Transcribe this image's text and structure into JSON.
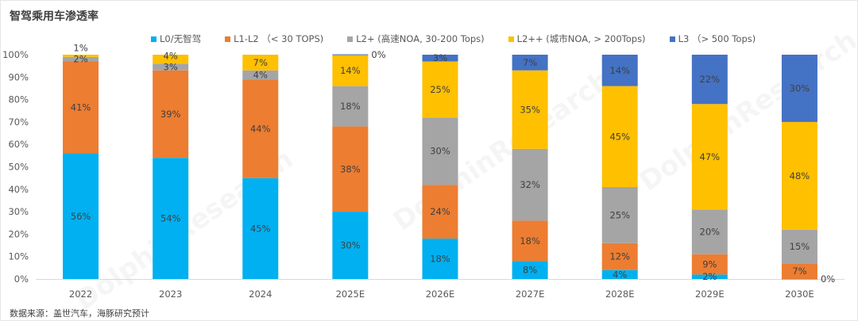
{
  "watermark": "DolphinResearch",
  "chart_data": {
    "type": "bar",
    "stacked": true,
    "title": "智驾乘用车渗透率",
    "source": "数据来源：盖世汽车，海豚研究预计",
    "categories": [
      "2022",
      "2023",
      "2024",
      "2025E",
      "2026E",
      "2027E",
      "2028E",
      "2029E",
      "2030E"
    ],
    "yticks": [
      "0%",
      "10%",
      "20%",
      "30%",
      "40%",
      "50%",
      "60%",
      "70%",
      "80%",
      "90%",
      "100%"
    ],
    "ylim": [
      0,
      100
    ],
    "grid": false,
    "legend": "top",
    "series": [
      {
        "name": "L0/无智驾",
        "color": "#00B0F0",
        "values": [
          56,
          54,
          45,
          30,
          18,
          8,
          4,
          2,
          0
        ]
      },
      {
        "name": "L1-L2 （< 30 TOPS)",
        "color": "#ED7D31",
        "values": [
          41,
          39,
          44,
          38,
          24,
          18,
          12,
          9,
          7
        ]
      },
      {
        "name": "L2+ (高速NOA, 30-200 Tops)",
        "color": "#A5A5A5",
        "values": [
          2,
          3,
          4,
          18,
          30,
          32,
          25,
          20,
          15
        ]
      },
      {
        "name": "L2++ (城市NOA, > 200Tops)",
        "color": "#FFC000",
        "values": [
          1,
          4,
          7,
          14,
          25,
          35,
          45,
          47,
          48
        ]
      },
      {
        "name": "L3 （> 500 Tops)",
        "color": "#4472C4",
        "values": [
          null,
          null,
          null,
          0,
          3,
          7,
          14,
          22,
          30
        ]
      }
    ]
  }
}
